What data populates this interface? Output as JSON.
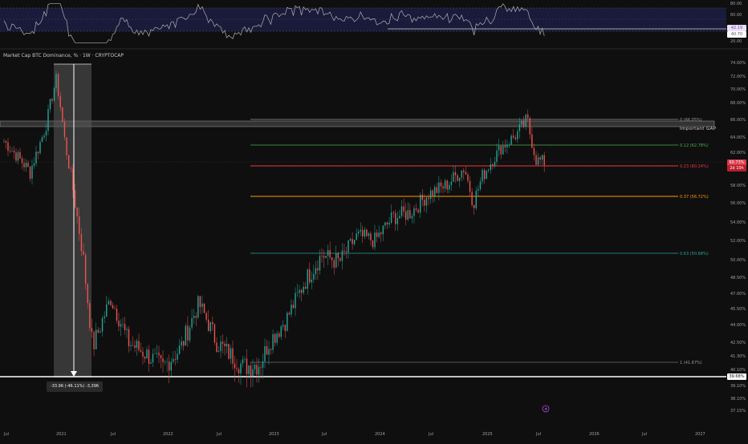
{
  "header": {
    "title": "Market Cap BTC Dominance, % · 1W · CRYPTOCAP"
  },
  "rsi_panel": {
    "axis_labels": [
      "80.00",
      "60.00",
      "40.00",
      "20.00"
    ],
    "value_tags": [
      "42.19",
      "40.70"
    ]
  },
  "price_axis": {
    "labels": [
      "74.00%",
      "72.00%",
      "70.00%",
      "68.00%",
      "66.00%",
      "64.00%",
      "62.00%",
      "60.00%",
      "58.00%",
      "56.00%",
      "54.00%",
      "52.00%",
      "50.00%",
      "48.50%",
      "47.00%",
      "45.50%",
      "44.00%",
      "42.50%",
      "41.30%",
      "40.10%",
      "39.10%",
      "38.10%",
      "37.15%"
    ],
    "current_tags": [
      "60.73%",
      "2d 10h"
    ],
    "base_tag": "39.68%"
  },
  "time_axis": {
    "labels": [
      "Jul",
      "2021",
      "Jul",
      "2022",
      "Jul",
      "2023",
      "Jul",
      "2024",
      "Jul",
      "2025",
      "Jul",
      "2026",
      "Jul",
      "2027"
    ]
  },
  "annotations": {
    "important_gap": "Important GAP",
    "measure": "-33.96 (-46.11%) -3,396"
  },
  "fib_levels": [
    {
      "label": "0 (66.05%)",
      "color": "#9a9a9a"
    },
    {
      "label": "0.12 (62.78%)",
      "color": "#4caf50"
    },
    {
      "label": "0.23 (60.24%)",
      "color": "#f23645"
    },
    {
      "label": "0.37 (56.72%)",
      "color": "#ff9800"
    },
    {
      "label": "0.63 (50.68%)",
      "color": "#26a69a"
    },
    {
      "label": "1 (41.67%)",
      "color": "#9a9a9a"
    }
  ],
  "colors": {
    "up": "#26a69a",
    "down": "#ef5350",
    "rsi_line": "#b0b0b0",
    "rsi_band": "#1a1a3a"
  },
  "chart_data": {
    "type": "candlestick",
    "series": [
      {
        "name": "BTC Dominance",
        "approx_weekly_closes": [
          {
            "x": "2020-07",
            "y": 63.5
          },
          {
            "x": "2020-10",
            "y": 59.5
          },
          {
            "x": "2020-12",
            "y": 66.0
          },
          {
            "x": "2021-01",
            "y": 71.5
          },
          {
            "x": "2021-02",
            "y": 63.0
          },
          {
            "x": "2021-04",
            "y": 50.0
          },
          {
            "x": "2021-05",
            "y": 42.0
          },
          {
            "x": "2021-07",
            "y": 46.5
          },
          {
            "x": "2021-09",
            "y": 42.5
          },
          {
            "x": "2021-11",
            "y": 41.5
          },
          {
            "x": "2022-01",
            "y": 40.3
          },
          {
            "x": "2022-03",
            "y": 42.0
          },
          {
            "x": "2022-05",
            "y": 46.0
          },
          {
            "x": "2022-07",
            "y": 42.5
          },
          {
            "x": "2022-10",
            "y": 40.4
          },
          {
            "x": "2022-12",
            "y": 40.6
          },
          {
            "x": "2023-01",
            "y": 42.5
          },
          {
            "x": "2023-03",
            "y": 44.5
          },
          {
            "x": "2023-05",
            "y": 48.0
          },
          {
            "x": "2023-07",
            "y": 50.5
          },
          {
            "x": "2023-09",
            "y": 49.8
          },
          {
            "x": "2023-11",
            "y": 52.5
          },
          {
            "x": "2024-01",
            "y": 52.0
          },
          {
            "x": "2024-03",
            "y": 54.5
          },
          {
            "x": "2024-05",
            "y": 55.0
          },
          {
            "x": "2024-07",
            "y": 57.0
          },
          {
            "x": "2024-09",
            "y": 58.0
          },
          {
            "x": "2024-11",
            "y": 60.0
          },
          {
            "x": "2024-12",
            "y": 56.0
          },
          {
            "x": "2025-01",
            "y": 59.0
          },
          {
            "x": "2025-03",
            "y": 62.5
          },
          {
            "x": "2025-05",
            "y": 64.5
          },
          {
            "x": "2025-06",
            "y": 66.0
          },
          {
            "x": "2025-07",
            "y": 61.0
          },
          {
            "x": "2025-08",
            "y": 60.7
          }
        ]
      }
    ],
    "ylim": [
      37.15,
      75.0
    ],
    "grid": false
  }
}
